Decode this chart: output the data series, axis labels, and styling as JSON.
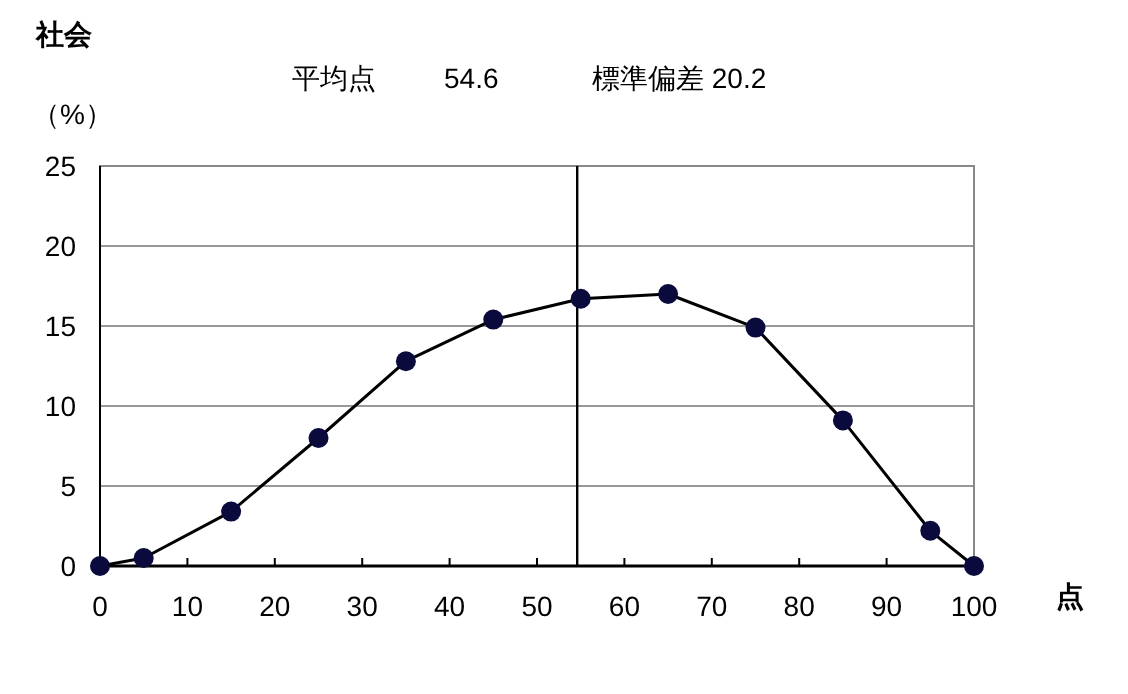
{
  "chart_data": {
    "type": "line",
    "title": "社会",
    "ylabel": "（%）",
    "xlabel": "点",
    "annotations": [
      "平均点",
      "54.6",
      "標準偏差  20.2"
    ],
    "x": [
      0,
      5,
      15,
      25,
      35,
      45,
      55,
      65,
      75,
      85,
      95,
      100
    ],
    "series": [
      {
        "color": "#000000",
        "values": [
          0,
          0.5,
          3.4,
          8.0,
          12.8,
          15.4,
          16.7,
          17.0,
          14.9,
          9.1,
          2.2,
          0
        ]
      }
    ],
    "xlim": [
      0,
      100
    ],
    "xticks": [
      0,
      10,
      20,
      30,
      40,
      50,
      60,
      70,
      80,
      90,
      100
    ],
    "ylim": [
      0,
      25
    ],
    "yticks": [
      0,
      5,
      10,
      15,
      20,
      25
    ],
    "grid": "y",
    "marker": "circle",
    "line_style": "solid",
    "ref_lines": [
      {
        "axis": "x",
        "value": 54.6,
        "color": "#000000"
      }
    ]
  }
}
